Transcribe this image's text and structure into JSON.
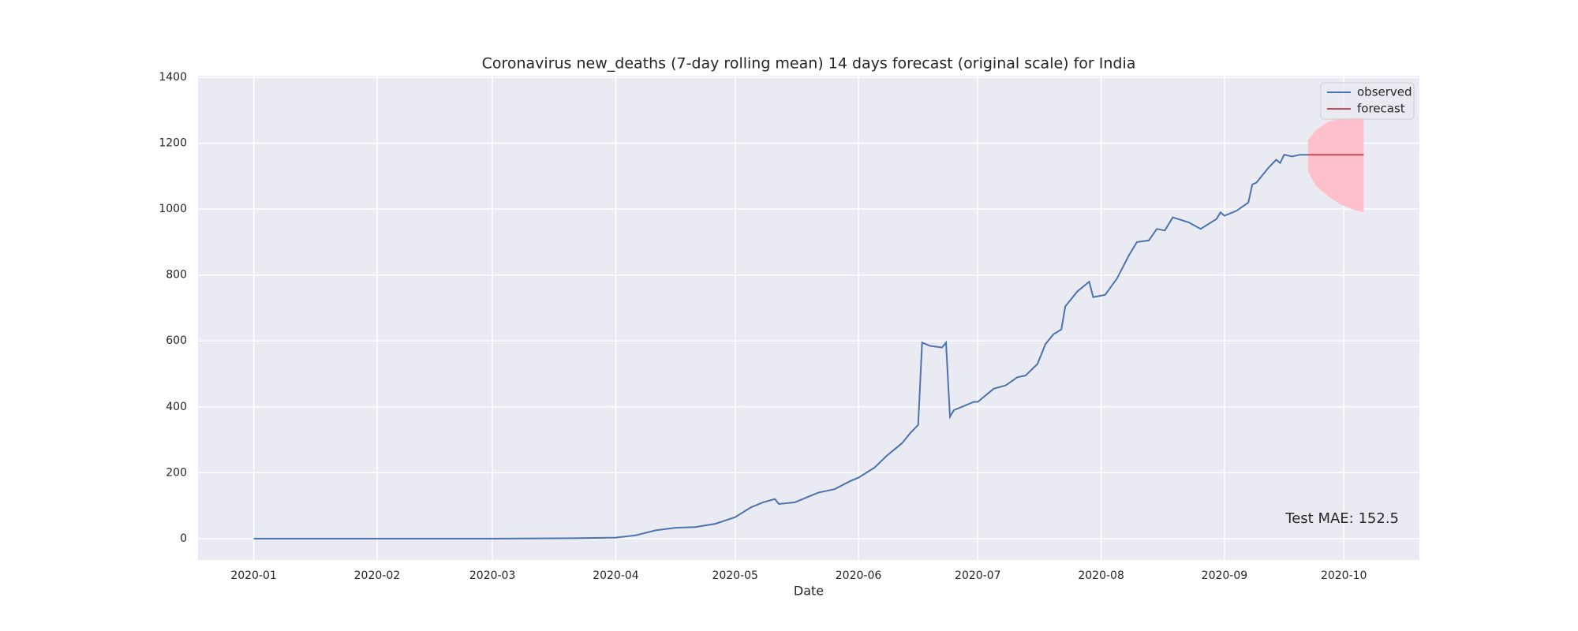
{
  "chart_data": {
    "type": "line",
    "title": "Coronavirus new_deaths (7-day rolling mean) 14 days forecast (original scale) for India",
    "xlabel": "Date",
    "xlim": [
      -14,
      293
    ],
    "xticks": [
      {
        "value": 0,
        "label": "2020-01"
      },
      {
        "value": 31,
        "label": "2020-02"
      },
      {
        "value": 60,
        "label": "2020-03"
      },
      {
        "value": 91,
        "label": "2020-04"
      },
      {
        "value": 121,
        "label": "2020-05"
      },
      {
        "value": 152,
        "label": "2020-06"
      },
      {
        "value": 182,
        "label": "2020-07"
      },
      {
        "value": 213,
        "label": "2020-08"
      },
      {
        "value": 244,
        "label": "2020-09"
      },
      {
        "value": 274,
        "label": "2020-10"
      }
    ],
    "ylim": [
      -65,
      1405
    ],
    "yticks": [
      0,
      200,
      400,
      600,
      800,
      1000,
      1200,
      1400
    ],
    "grid": true,
    "legend": "upper right",
    "series": [
      {
        "name": "observed",
        "color": "#4c72b0",
        "x": [
          0,
          30,
          60,
          80,
          91,
          96,
          101,
          106,
          111,
          116,
          121,
          125,
          128,
          131,
          132,
          136,
          139,
          142,
          146,
          150,
          152,
          156,
          159,
          163,
          165,
          167,
          168,
          170,
          173,
          174,
          175,
          176,
          179,
          181,
          182,
          186,
          189,
          192,
          194,
          197,
          199,
          201,
          203,
          204,
          207,
          210,
          211,
          214,
          217,
          220,
          222,
          225,
          227,
          229,
          231,
          235,
          238,
          242,
          243,
          244,
          247,
          250,
          251,
          252,
          255,
          257,
          258,
          259,
          261,
          263,
          265
        ],
        "values": [
          0,
          0,
          0,
          1,
          3,
          10,
          25,
          33,
          35,
          45,
          65,
          95,
          110,
          120,
          105,
          110,
          125,
          140,
          150,
          175,
          185,
          215,
          250,
          290,
          320,
          345,
          595,
          585,
          580,
          595,
          370,
          390,
          405,
          415,
          415,
          455,
          465,
          490,
          495,
          530,
          590,
          620,
          635,
          705,
          750,
          780,
          733,
          740,
          790,
          860,
          900,
          905,
          940,
          935,
          975,
          960,
          940,
          970,
          990,
          980,
          995,
          1020,
          1075,
          1080,
          1125,
          1150,
          1140,
          1165,
          1160,
          1165,
          1165
        ]
      },
      {
        "name": "forecast",
        "color": "#c44e52",
        "x": [
          265,
          279
        ],
        "values": [
          1165,
          1165
        ]
      }
    ],
    "interval": {
      "color": "#ffc0cb",
      "x": [
        265,
        267,
        270,
        273,
        276,
        279
      ],
      "lower": [
        1115,
        1070,
        1040,
        1015,
        1000,
        990
      ],
      "upper": [
        1210,
        1240,
        1265,
        1275,
        1280,
        1280
      ]
    },
    "annotation": "Test MAE: 152.5"
  }
}
